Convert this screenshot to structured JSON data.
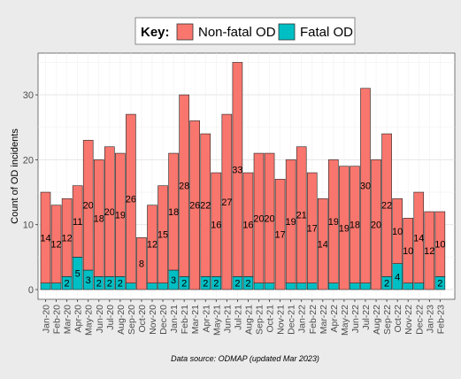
{
  "chart_data": {
    "type": "bar",
    "stacked": true,
    "legend": {
      "title": "Key:",
      "placement": "top-center",
      "entries": [
        {
          "name": "Non-fatal OD",
          "color": "#f8766d"
        },
        {
          "name": "Fatal OD",
          "color": "#00bfc4"
        }
      ]
    },
    "ylabel": "Count of OD incidents",
    "xlabel": "",
    "caption": "Data source: ODMAP (updated Mar 2023)",
    "ylim": [
      0,
      36
    ],
    "yticks": [
      0,
      10,
      20,
      30
    ],
    "grid": true,
    "categories": [
      "Jan-20",
      "Feb-20",
      "Mar-20",
      "Apr-20",
      "May-20",
      "Jun-20",
      "Jul-20",
      "Aug-20",
      "Sep-20",
      "Oct-20",
      "Nov-20",
      "Dec-20",
      "Jan-21",
      "Feb-21",
      "Mar-21",
      "Apr-21",
      "May-21",
      "Jun-21",
      "Jul-21",
      "Aug-21",
      "Sep-21",
      "Oct-21",
      "Nov-21",
      "Dec-21",
      "Jan-22",
      "Feb-22",
      "Mar-22",
      "Apr-22",
      "May-22",
      "Jun-22",
      "Jul-22",
      "Aug-22",
      "Sep-22",
      "Oct-22",
      "Nov-22",
      "Dec-22",
      "Jan-23",
      "Feb-23"
    ],
    "x_tick_labels": [
      "Jan-20",
      "Feb-20",
      "Mar-20",
      "Apr-20",
      "May-20",
      "Jun-20",
      "Jul-20",
      "Aug-20",
      "Sep-20",
      "Oct-20",
      "Nov-20",
      "Dec-20",
      "Jan-21",
      "Feb-21",
      "Mar-21",
      "Apr-21",
      "May-21",
      "Jun-21",
      "Jul-21",
      "Aug-21",
      "Sep-21",
      "Oct-21",
      "Nov-21",
      "Dec-21",
      "Jan-22",
      "Feb-22",
      "Mar-22",
      "Apr-22",
      "May-22",
      "Jun-22",
      "Jul-22",
      "Aug-22",
      "Sep-22",
      "Oct-22",
      "Nov-22",
      "Dec-22",
      "Jan-23",
      "Feb-23"
    ],
    "series": [
      {
        "name": "Non-fatal OD",
        "color": "#f8766d",
        "values": [
          14,
          12,
          12,
          11,
          20,
          18,
          20,
          19,
          26,
          8,
          12,
          15,
          18,
          28,
          26,
          22,
          16,
          27,
          33,
          16,
          20,
          20,
          17,
          19,
          21,
          17,
          14,
          19,
          19,
          18,
          30,
          20,
          22,
          10,
          10,
          14,
          12,
          10
        ],
        "labels": [
          "14",
          "12",
          "12",
          "11",
          "20",
          "18",
          "20",
          "19",
          "26",
          "8",
          "12",
          "15",
          "18",
          "28",
          "26",
          "22",
          "16",
          "27",
          "33",
          "16",
          "20",
          "20",
          "17",
          "19",
          "21",
          "17",
          "14",
          "19",
          "19",
          "18",
          "30",
          "20",
          "22",
          "10",
          "10",
          "14",
          "12",
          "10"
        ]
      },
      {
        "name": "Fatal OD",
        "color": "#00bfc4",
        "values": [
          1,
          1,
          2,
          5,
          3,
          2,
          2,
          2,
          1,
          0,
          1,
          1,
          3,
          2,
          0,
          2,
          2,
          0,
          2,
          2,
          1,
          1,
          0,
          1,
          1,
          1,
          0,
          1,
          0,
          1,
          1,
          0,
          2,
          4,
          1,
          1,
          0,
          2
        ],
        "labels": [
          "",
          "",
          "2",
          "5",
          "3",
          "2",
          "2",
          "2",
          "",
          "",
          "",
          "",
          "3",
          "2",
          "",
          "2",
          "2",
          "",
          "2",
          "2",
          "",
          "",
          "",
          "",
          "",
          "",
          "",
          "",
          "",
          "",
          "",
          "",
          "2",
          "4",
          "",
          "",
          "",
          "2"
        ]
      }
    ]
  }
}
